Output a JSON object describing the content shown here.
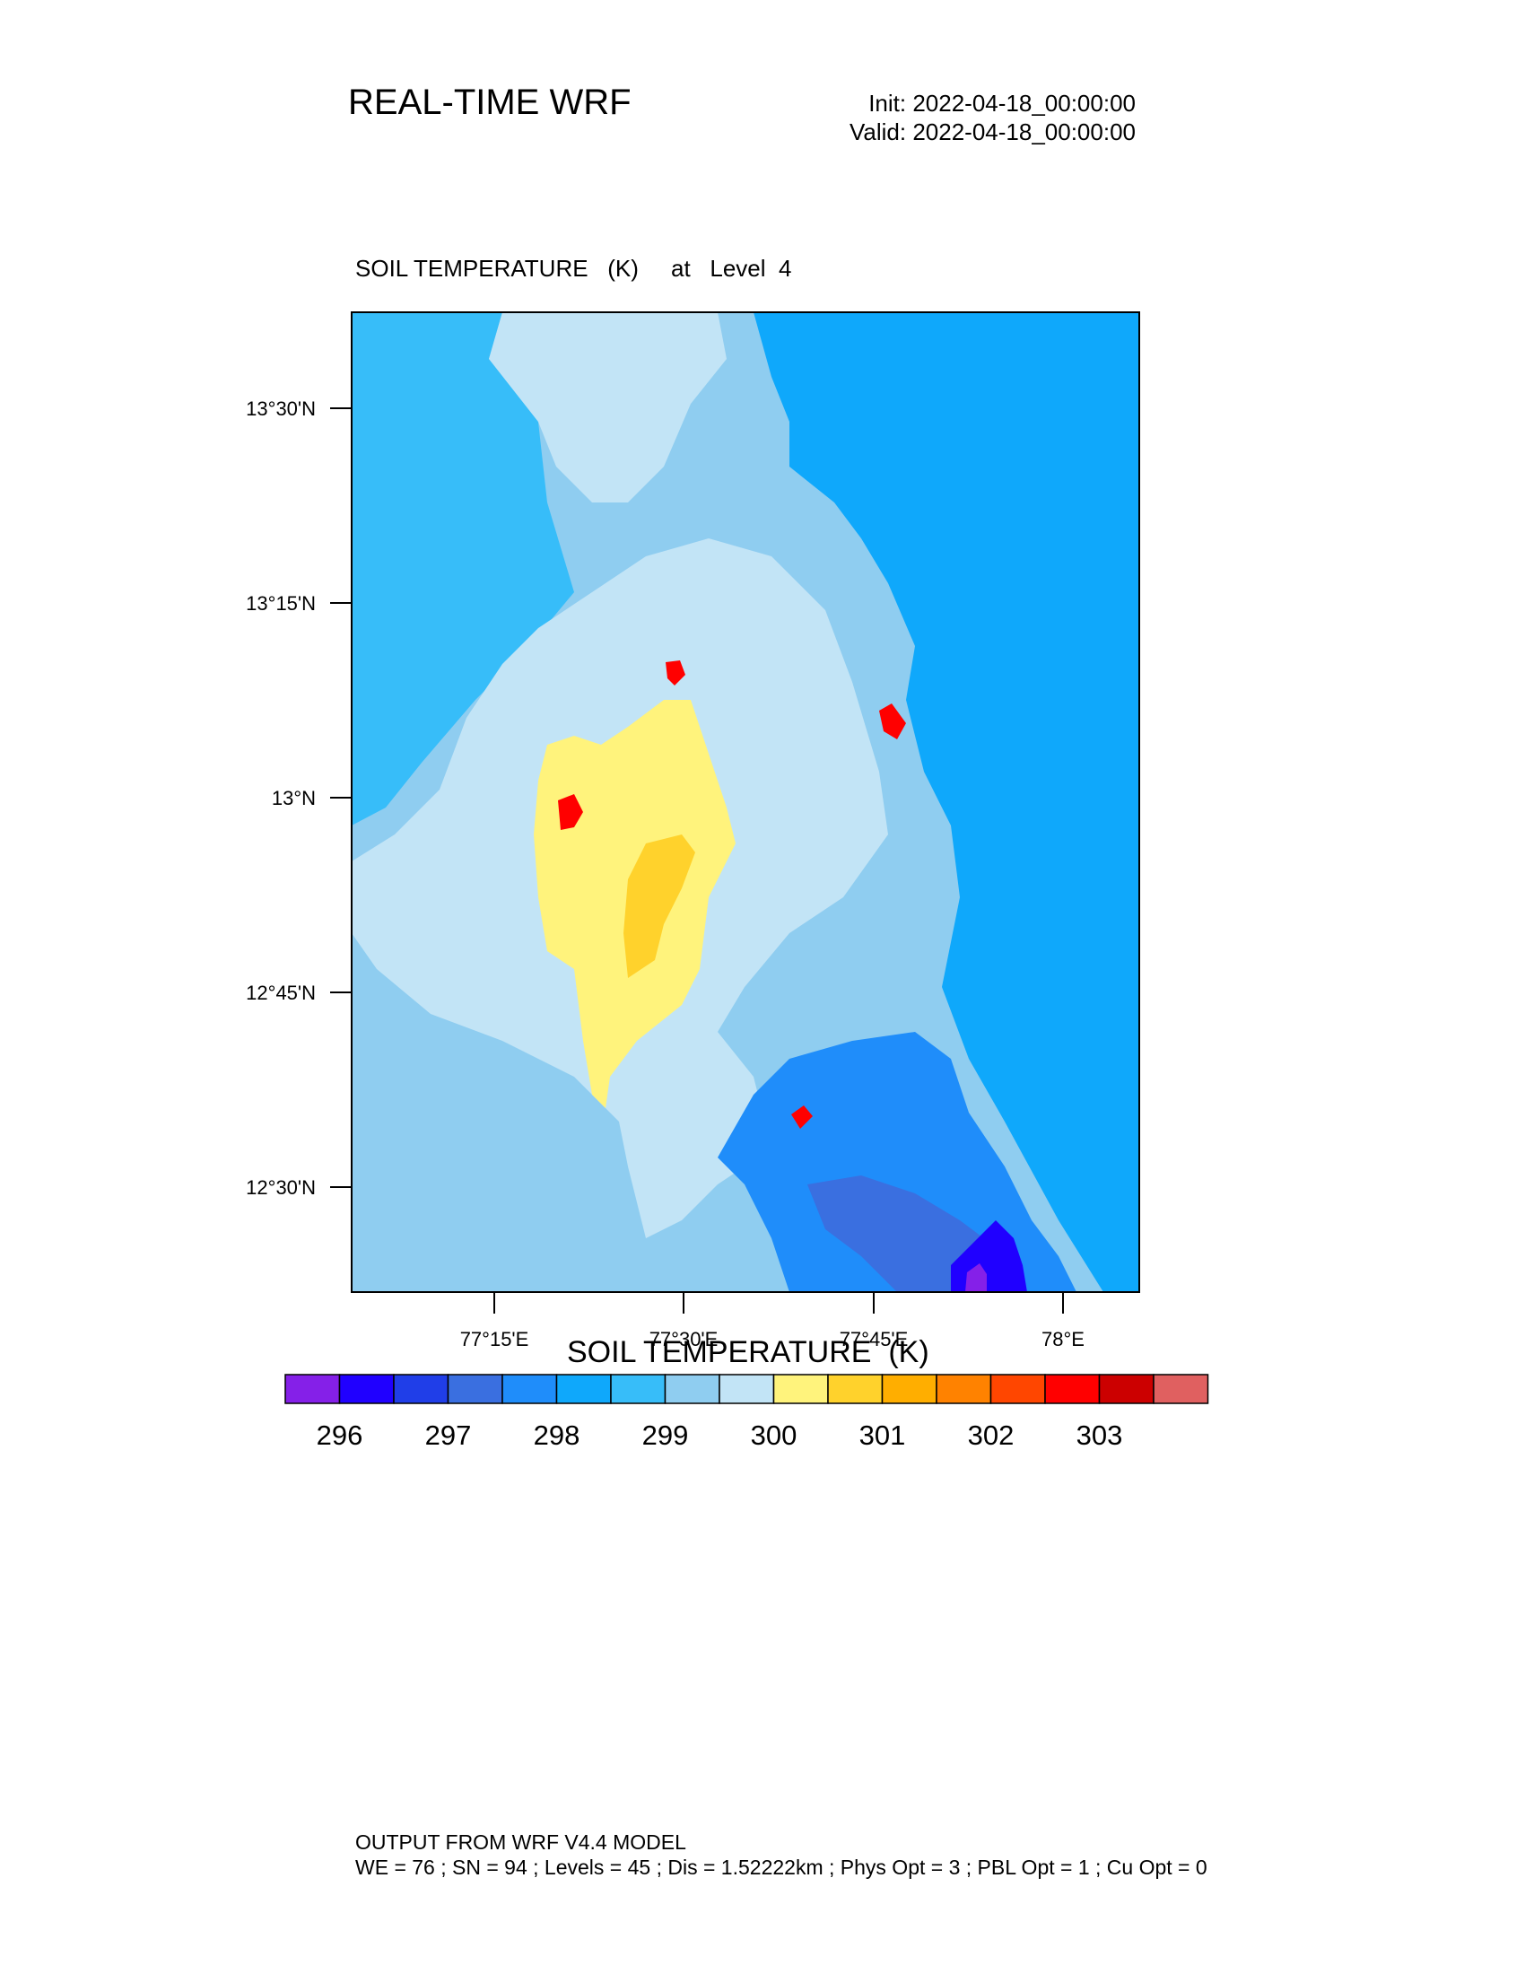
{
  "header": {
    "title": "REAL-TIME WRF",
    "init": "Init: 2022-04-18_00:00:00",
    "valid": "Valid: 2022-04-18_00:00:00"
  },
  "map": {
    "field_title": "SOIL TEMPERATURE   (K)     at   Level  4",
    "lat_labels": [
      "13°30'N",
      "13°15'N",
      "13°N",
      "12°45'N",
      "12°30'N"
    ],
    "lon_labels": [
      "77°15'E",
      "77°30'E",
      "77°45'E",
      "78°E"
    ],
    "background_color": "#8fcdf0",
    "features": [
      {
        "name": "northwest blue zone",
        "color": "#37bdf9"
      },
      {
        "name": "north central light zone",
        "color": "#c2e4f6"
      },
      {
        "name": "east blue zone",
        "color": "#0fa8fb"
      },
      {
        "name": "central light zone",
        "color": "#c2e4f6"
      },
      {
        "name": "central warm core",
        "color": "#fff37c"
      },
      {
        "name": "central warmest core",
        "color": "#ffd22c"
      },
      {
        "name": "southeast dark zone",
        "color": "#1f8dfa"
      },
      {
        "name": "southeast darker zone",
        "color": "#3a6fe0"
      },
      {
        "name": "southeast coldest core",
        "color": "#2000ff"
      },
      {
        "name": "southeast purple core",
        "color": "#8520e8"
      },
      {
        "name": "hot spot",
        "color": "#ff0000"
      }
    ]
  },
  "colorbar": {
    "title": "SOIL TEMPERATURE  (K)",
    "colors": [
      "#8520e8",
      "#2000ff",
      "#203ee8",
      "#3a6fe0",
      "#1f8dfa",
      "#0fa8fb",
      "#37bdf9",
      "#8fcdf0",
      "#c2e4f6",
      "#fff37c",
      "#ffd22c",
      "#ffae00",
      "#ff8200",
      "#ff4600",
      "#ff0000",
      "#cc0000",
      "#e06060"
    ],
    "labels": [
      "296",
      "297",
      "298",
      "299",
      "300",
      "301",
      "302",
      "303"
    ]
  },
  "footer": {
    "line1": "OUTPUT FROM WRF V4.4 MODEL",
    "line2": "WE = 76 ; SN = 94 ; Levels = 45 ; Dis = 1.52222km ; Phys Opt = 3 ; PBL Opt = 1 ; Cu Opt = 0"
  }
}
